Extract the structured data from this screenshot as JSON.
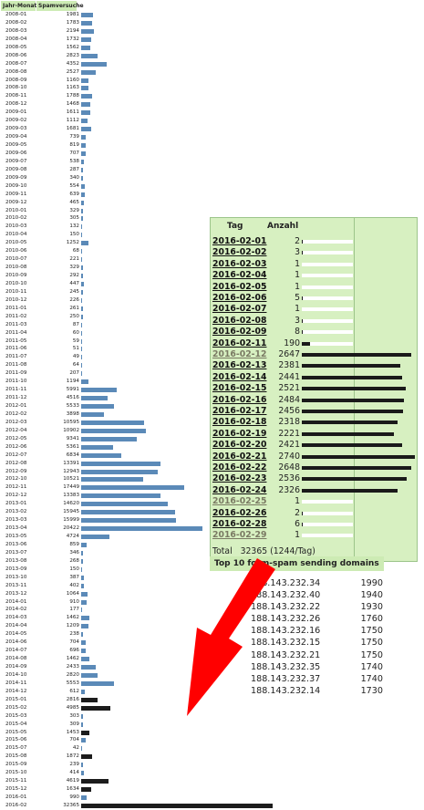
{
  "monthly": {
    "headers": [
      "Jahr-Monat",
      "Spamversuche"
    ],
    "max_value": 32365,
    "rows": [
      {
        "month": "2008-01",
        "value": 1981
      },
      {
        "month": "2008-02",
        "value": 1783
      },
      {
        "month": "2008-03",
        "value": 2194
      },
      {
        "month": "2008-04",
        "value": 1732
      },
      {
        "month": "2008-05",
        "value": 1562
      },
      {
        "month": "2008-06",
        "value": 2823
      },
      {
        "month": "2008-07",
        "value": 4352
      },
      {
        "month": "2008-08",
        "value": 2527
      },
      {
        "month": "2008-09",
        "value": 1160
      },
      {
        "month": "2008-10",
        "value": 1163
      },
      {
        "month": "2008-11",
        "value": 1788
      },
      {
        "month": "2008-12",
        "value": 1468
      },
      {
        "month": "2009-01",
        "value": 1611
      },
      {
        "month": "2009-02",
        "value": 1112
      },
      {
        "month": "2009-03",
        "value": 1681
      },
      {
        "month": "2009-04",
        "value": 739
      },
      {
        "month": "2009-05",
        "value": 819
      },
      {
        "month": "2009-06",
        "value": 707
      },
      {
        "month": "2009-07",
        "value": 538
      },
      {
        "month": "2009-08",
        "value": 287
      },
      {
        "month": "2009-09",
        "value": 340
      },
      {
        "month": "2009-10",
        "value": 554
      },
      {
        "month": "2009-11",
        "value": 639
      },
      {
        "month": "2009-12",
        "value": 465
      },
      {
        "month": "2010-01",
        "value": 329
      },
      {
        "month": "2010-02",
        "value": 305
      },
      {
        "month": "2010-03",
        "value": 132
      },
      {
        "month": "2010-04",
        "value": 150
      },
      {
        "month": "2010-05",
        "value": 1252
      },
      {
        "month": "2010-06",
        "value": 68
      },
      {
        "month": "2010-07",
        "value": 221
      },
      {
        "month": "2010-08",
        "value": 329
      },
      {
        "month": "2010-09",
        "value": 292
      },
      {
        "month": "2010-10",
        "value": 447
      },
      {
        "month": "2010-11",
        "value": 245
      },
      {
        "month": "2010-12",
        "value": 226
      },
      {
        "month": "2011-01",
        "value": 261
      },
      {
        "month": "2011-02",
        "value": 250
      },
      {
        "month": "2011-03",
        "value": 87
      },
      {
        "month": "2011-04",
        "value": 60
      },
      {
        "month": "2011-05",
        "value": 59
      },
      {
        "month": "2011-06",
        "value": 51
      },
      {
        "month": "2011-07",
        "value": 49
      },
      {
        "month": "2011-08",
        "value": 64
      },
      {
        "month": "2011-09",
        "value": 207
      },
      {
        "month": "2011-10",
        "value": 1194
      },
      {
        "month": "2011-11",
        "value": 5991
      },
      {
        "month": "2011-12",
        "value": 4516
      },
      {
        "month": "2012-01",
        "value": 5533
      },
      {
        "month": "2012-02",
        "value": 3898
      },
      {
        "month": "2012-03",
        "value": 10595
      },
      {
        "month": "2012-04",
        "value": 10902
      },
      {
        "month": "2012-05",
        "value": 9341
      },
      {
        "month": "2012-06",
        "value": 5361
      },
      {
        "month": "2012-07",
        "value": 6834
      },
      {
        "month": "2012-08",
        "value": 13391
      },
      {
        "month": "2012-09",
        "value": 12943
      },
      {
        "month": "2012-10",
        "value": 10521
      },
      {
        "month": "2012-11",
        "value": 17449
      },
      {
        "month": "2012-12",
        "value": 13383
      },
      {
        "month": "2013-01",
        "value": 14620
      },
      {
        "month": "2013-02",
        "value": 15945
      },
      {
        "month": "2013-03",
        "value": 15999
      },
      {
        "month": "2013-04",
        "value": 20422
      },
      {
        "month": "2013-05",
        "value": 4724
      },
      {
        "month": "2013-06",
        "value": 859
      },
      {
        "month": "2013-07",
        "value": 346
      },
      {
        "month": "2013-08",
        "value": 268
      },
      {
        "month": "2013-09",
        "value": 150
      },
      {
        "month": "2013-10",
        "value": 387
      },
      {
        "month": "2013-11",
        "value": 402
      },
      {
        "month": "2013-12",
        "value": 1064
      },
      {
        "month": "2014-01",
        "value": 910
      },
      {
        "month": "2014-02",
        "value": 177
      },
      {
        "month": "2014-03",
        "value": 1462
      },
      {
        "month": "2014-04",
        "value": 1209
      },
      {
        "month": "2014-05",
        "value": 238
      },
      {
        "month": "2014-06",
        "value": 704
      },
      {
        "month": "2014-07",
        "value": 696
      },
      {
        "month": "2014-08",
        "value": 1462
      },
      {
        "month": "2014-09",
        "value": 2433
      },
      {
        "month": "2014-10",
        "value": 2820
      },
      {
        "month": "2014-11",
        "value": 5553
      },
      {
        "month": "2014-12",
        "value": 612
      },
      {
        "month": "2015-01",
        "value": 2816,
        "dark": true
      },
      {
        "month": "2015-02",
        "value": 4985,
        "dark": true
      },
      {
        "month": "2015-03",
        "value": 303
      },
      {
        "month": "2015-04",
        "value": 309
      },
      {
        "month": "2015-05",
        "value": 1453,
        "dark": true
      },
      {
        "month": "2015-06",
        "value": 704
      },
      {
        "month": "2015-07",
        "value": 42
      },
      {
        "month": "2015-08",
        "value": 1872,
        "dark": true
      },
      {
        "month": "2015-09",
        "value": 239
      },
      {
        "month": "2015-10",
        "value": 414
      },
      {
        "month": "2015-11",
        "value": 4619,
        "dark": true
      },
      {
        "month": "2015-12",
        "value": 1634,
        "dark": true
      },
      {
        "month": "2016-01",
        "value": 990
      },
      {
        "month": "2016-02",
        "value": 32365,
        "dark": true
      }
    ]
  },
  "daily": {
    "header_day": "Tag",
    "header_count": "Anzahl",
    "max_value": 2740,
    "rows": [
      {
        "date": "2016-02-01",
        "count": 2
      },
      {
        "date": "2016-02-02",
        "count": 3
      },
      {
        "date": "2016-02-03",
        "count": 1
      },
      {
        "date": "2016-02-04",
        "count": 1
      },
      {
        "date": "2016-02-05",
        "count": 1
      },
      {
        "date": "2016-02-06",
        "count": 5
      },
      {
        "date": "2016-02-07",
        "count": 1
      },
      {
        "date": "2016-02-08",
        "count": 3
      },
      {
        "date": "2016-02-09",
        "count": 8
      },
      {
        "date": "2016-02-11",
        "count": 190
      },
      {
        "date": "2016-02-12",
        "count": 2647,
        "weekend": true
      },
      {
        "date": "2016-02-13",
        "count": 2381
      },
      {
        "date": "2016-02-14",
        "count": 2441
      },
      {
        "date": "2016-02-15",
        "count": 2521
      },
      {
        "date": "2016-02-16",
        "count": 2484
      },
      {
        "date": "2016-02-17",
        "count": 2456
      },
      {
        "date": "2016-02-18",
        "count": 2318
      },
      {
        "date": "2016-02-19",
        "count": 2221
      },
      {
        "date": "2016-02-20",
        "count": 2421
      },
      {
        "date": "2016-02-21",
        "count": 2740
      },
      {
        "date": "2016-02-22",
        "count": 2648
      },
      {
        "date": "2016-02-23",
        "count": 2536
      },
      {
        "date": "2016-02-24",
        "count": 2326
      },
      {
        "date": "2016-02-25",
        "count": 1,
        "weekend": true
      },
      {
        "date": "2016-02-26",
        "count": 2
      },
      {
        "date": "2016-02-28",
        "count": 6
      },
      {
        "date": "2016-02-29",
        "count": 1,
        "weekend": true
      }
    ],
    "total_label": "Total",
    "total_value": "32365 (1244/Tag)"
  },
  "top10": {
    "title": "Top 10 form-spam sending domains",
    "rows": [
      {
        "ip": "188.143.232.34",
        "count": "1990"
      },
      {
        "ip": "188.143.232.40",
        "count": "1940"
      },
      {
        "ip": "188.143.232.22",
        "count": "1930"
      },
      {
        "ip": "188.143.232.26",
        "count": "1760"
      },
      {
        "ip": "188.143.232.16",
        "count": "1750"
      },
      {
        "ip": "188.143.232.15",
        "count": "1750"
      },
      {
        "ip": "188.143.232.21",
        "count": "1750"
      },
      {
        "ip": "188.143.232.35",
        "count": "1740"
      },
      {
        "ip": "188.143.232.37",
        "count": "1740"
      },
      {
        "ip": "188.143.232.14",
        "count": "1730"
      }
    ]
  },
  "colors": {
    "bar": "#5b8ab8",
    "bar_dark": "#1c1c1c",
    "header_green": "#cdebb4",
    "panel_green": "#d7f0c1",
    "arrow": "#ff0000"
  }
}
